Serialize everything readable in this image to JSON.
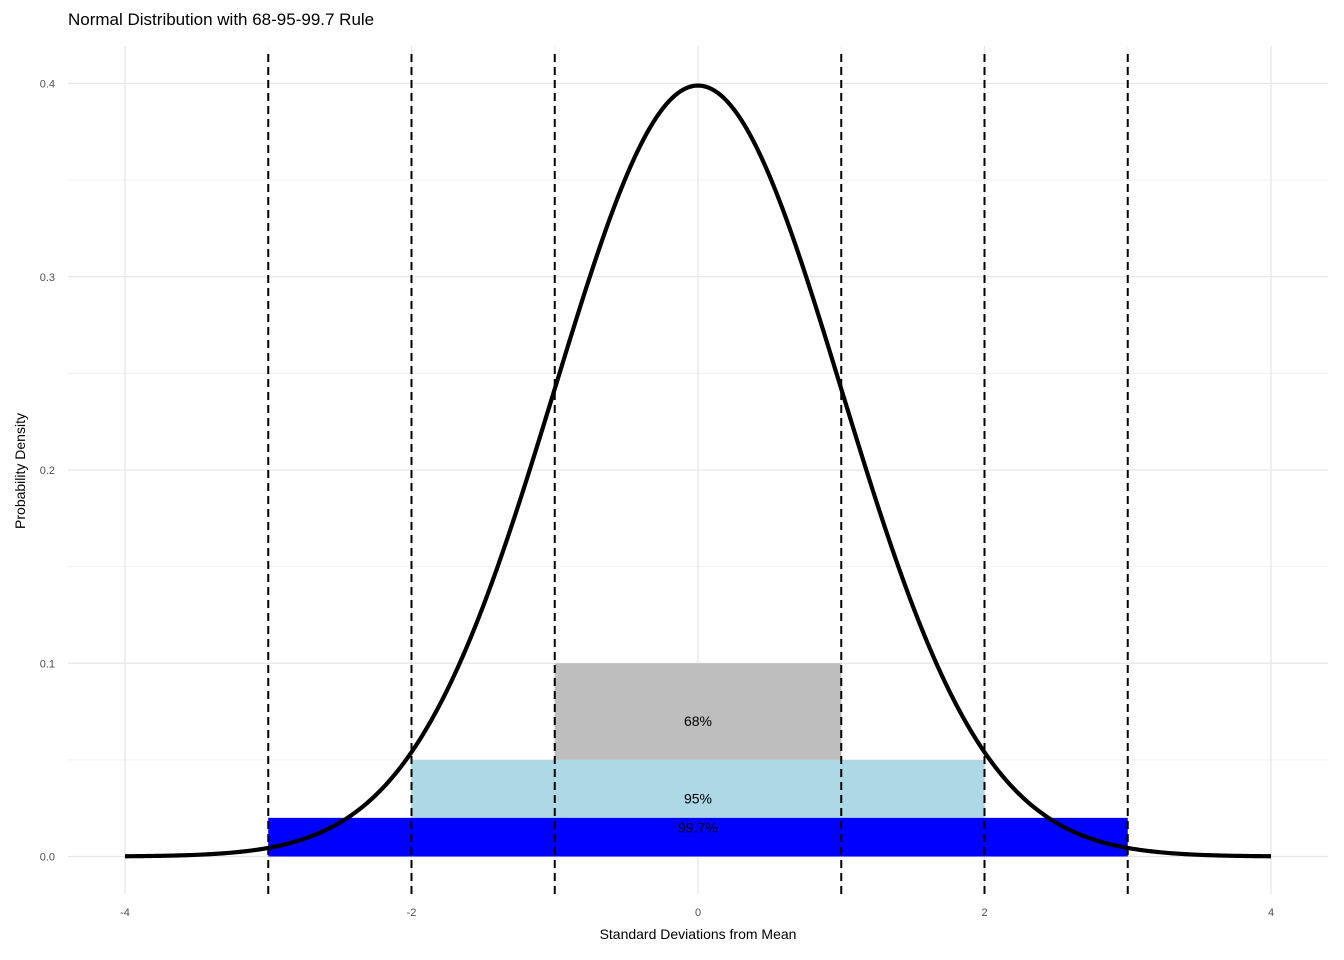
{
  "chart_data": {
    "type": "line",
    "title": "Normal Distribution with 68-95-99.7 Rule",
    "xlabel": "Standard Deviations from Mean",
    "ylabel": "Probability Density",
    "xlim": [
      -4,
      4
    ],
    "ylim": [
      0,
      0.4
    ],
    "xticks": [
      -4,
      -2,
      0,
      2,
      4
    ],
    "yticks": [
      0.0,
      0.1,
      0.2,
      0.3,
      0.4
    ],
    "ytick_labels": [
      "0.0",
      "0.1",
      "0.2",
      "0.3",
      "0.4"
    ],
    "series": [
      {
        "distribution": "standard normal",
        "mean": 0,
        "sd": 1,
        "x_range": [
          -4,
          4
        ],
        "color": "#000000"
      }
    ],
    "bands": [
      {
        "label": "68%",
        "x": [
          -1,
          1
        ],
        "y": [
          0.05,
          0.1
        ],
        "color": "#bebebe",
        "label_y": 0.07
      },
      {
        "label": "95%",
        "x": [
          -2,
          2
        ],
        "y": [
          0.02,
          0.05
        ],
        "color": "#add8e6",
        "label_y": 0.03
      },
      {
        "label": "99.7%",
        "x": [
          -3,
          3
        ],
        "y": [
          0.0,
          0.02
        ],
        "color": "#0000ff",
        "label_y": 0.015
      }
    ],
    "vlines": [
      -3,
      -2,
      -1,
      1,
      2,
      3
    ],
    "grid": true
  }
}
